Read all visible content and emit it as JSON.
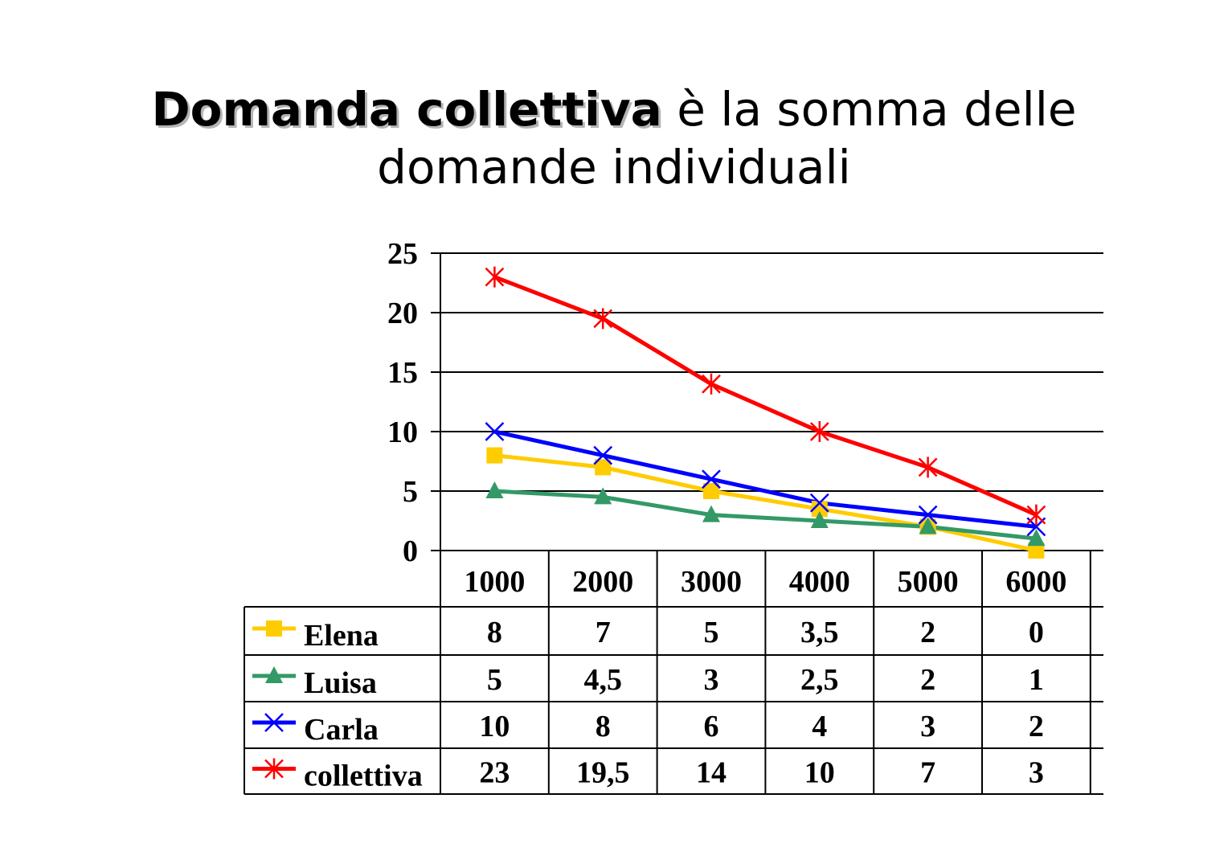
{
  "title": {
    "bold_part": "Domanda collettiva",
    "rest_line1": " è la somma delle",
    "line2": "domande individuali"
  },
  "chart_data": {
    "type": "line",
    "title": "Domanda collettiva è la somma delle domande individuali",
    "xlabel": "",
    "ylabel": "",
    "categories": [
      "1000",
      "2000",
      "3000",
      "4000",
      "5000",
      "6000"
    ],
    "yticks": [
      "0",
      "5",
      "10",
      "15",
      "20",
      "25"
    ],
    "ylim": [
      0,
      25
    ],
    "grid": true,
    "legend_position": "data-table-left",
    "series": [
      {
        "name": "Elena",
        "color": "#FFCC00",
        "marker": "square",
        "values": [
          8,
          7,
          5,
          3.5,
          2,
          0
        ],
        "labels": [
          "8",
          "7",
          "5",
          "3,5",
          "2",
          "0"
        ]
      },
      {
        "name": "Luisa",
        "color": "#339966",
        "marker": "triangle",
        "values": [
          5,
          4.5,
          3,
          2.5,
          2,
          1
        ],
        "labels": [
          "5",
          "4,5",
          "3",
          "2,5",
          "2",
          "1"
        ]
      },
      {
        "name": "Carla",
        "color": "#0000FF",
        "marker": "x",
        "values": [
          10,
          8,
          6,
          4,
          3,
          2
        ],
        "labels": [
          "10",
          "8",
          "6",
          "4",
          "3",
          "2"
        ]
      },
      {
        "name": "collettiva",
        "color": "#FF0000",
        "marker": "asterisk",
        "values": [
          23,
          19.5,
          14,
          10,
          7,
          3
        ],
        "labels": [
          "23",
          "19,5",
          "14",
          "10",
          "7",
          "3"
        ]
      }
    ]
  }
}
